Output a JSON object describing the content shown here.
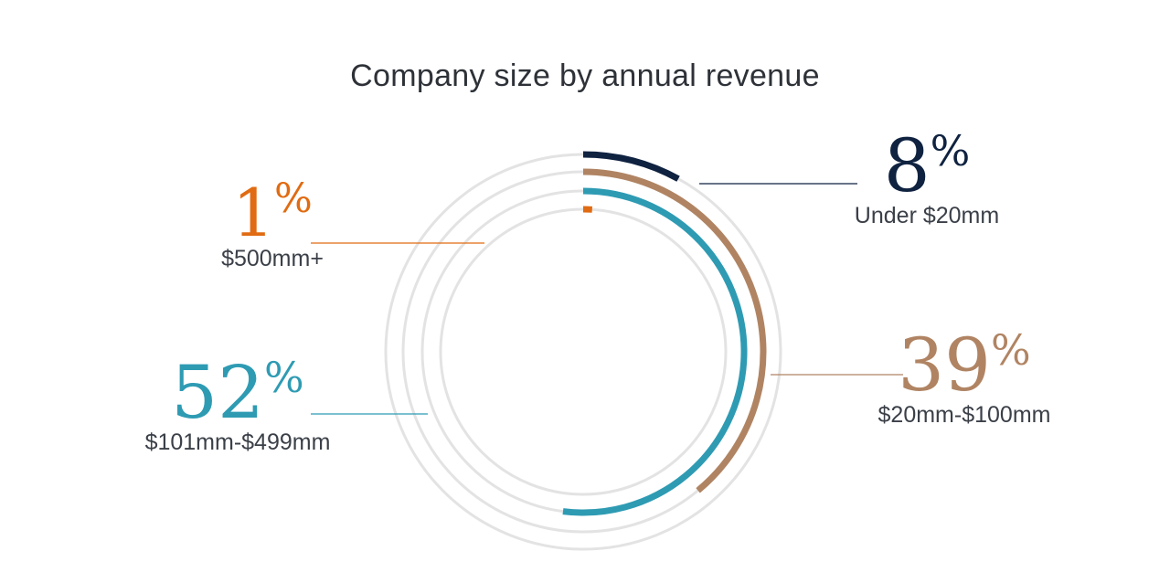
{
  "chart_data": {
    "type": "radial-bar",
    "title": "Company size by annual revenue",
    "unit": "%",
    "series": [
      {
        "name": "Under $20mm",
        "value": 8,
        "color": "#0f2240"
      },
      {
        "name": "$20mm-$100mm",
        "value": 39,
        "color": "#b08463"
      },
      {
        "name": "$101mm-$499mm",
        "value": 52,
        "color": "#2e9bb3"
      },
      {
        "name": "$500mm+",
        "value": 1,
        "color": "#e06b12"
      }
    ],
    "track_color": "#e3e3e3",
    "max": 100
  },
  "callouts": {
    "under_20": {
      "value": "8",
      "sign": "%",
      "label": "Under $20mm"
    },
    "mid_20_100": {
      "value": "39",
      "sign": "%",
      "label": "$20mm-$100mm"
    },
    "over_500": {
      "value": "1",
      "sign": "%",
      "label": "$500mm+"
    },
    "mid_101_499": {
      "value": "52",
      "sign": "%",
      "label": "$101mm-$499mm"
    }
  }
}
